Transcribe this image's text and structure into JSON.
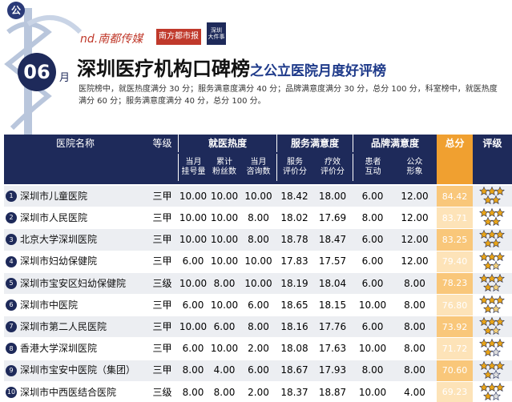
{
  "header": {
    "badge": "公",
    "brand": "nd.南都传媒",
    "paper": "南方都市报",
    "app": "深圳\n大件事",
    "month_number": "06",
    "month_unit": "月",
    "title": "深圳医疗机构口碑榜",
    "subtitle": "之公立医院月度好评榜",
    "description": "医院榜中，就医热度满分 30 分；服务满意度满分 40 分；品牌满意度满分 30 分，总分 100 分，科室榜中，就医热度满分 60 分；服务满意度满分 40 分，总分 100 分。"
  },
  "table": {
    "columns": {
      "name": "医院名称",
      "grade": "等级",
      "groups": [
        {
          "label": "就医热度",
          "subs": [
            "当月\n挂号量",
            "累计\n粉丝数",
            "当月\n咨询数"
          ]
        },
        {
          "label": "服务满意度",
          "subs": [
            "服务\n评价分",
            "疗效\n评价分"
          ]
        },
        {
          "label": "品牌满意度",
          "subs": [
            "患者\n互动",
            "公众\n形象"
          ]
        }
      ],
      "total": "总分",
      "rating": "评级"
    },
    "rows": [
      {
        "rank": "1",
        "name": "深圳市儿童医院",
        "grade": "三甲",
        "cells": [
          "10.00",
          "10.00",
          "10.00",
          "18.42",
          "18.00",
          "6.00",
          "12.00"
        ],
        "total": "84.42",
        "rating": 5
      },
      {
        "rank": "2",
        "name": "深圳市人民医院",
        "grade": "三甲",
        "cells": [
          "10.00",
          "10.00",
          "8.00",
          "18.02",
          "17.69",
          "8.00",
          "12.00"
        ],
        "total": "83.71",
        "rating": 5
      },
      {
        "rank": "3",
        "name": "北京大学深圳医院",
        "grade": "三甲",
        "cells": [
          "10.00",
          "10.00",
          "8.00",
          "18.78",
          "18.47",
          "6.00",
          "12.00"
        ],
        "total": "83.25",
        "rating": 5
      },
      {
        "rank": "4",
        "name": "深圳市妇幼保健院",
        "grade": "三甲",
        "cells": [
          "6.00",
          "10.00",
          "10.00",
          "17.83",
          "17.57",
          "6.00",
          "12.00"
        ],
        "total": "79.40",
        "rating": 4.5
      },
      {
        "rank": "5",
        "name": "深圳市宝安区妇幼保健院",
        "grade": "三级",
        "cells": [
          "10.00",
          "8.00",
          "10.00",
          "18.19",
          "18.04",
          "6.00",
          "8.00"
        ],
        "total": "78.23",
        "rating": 4.5
      },
      {
        "rank": "6",
        "name": "深圳市中医院",
        "grade": "三甲",
        "cells": [
          "6.00",
          "10.00",
          "6.00",
          "18.65",
          "18.15",
          "10.00",
          "8.00"
        ],
        "total": "76.80",
        "rating": 4.5
      },
      {
        "rank": "7",
        "name": "深圳市第二人民医院",
        "grade": "三甲",
        "cells": [
          "10.00",
          "6.00",
          "8.00",
          "18.16",
          "17.76",
          "6.00",
          "8.00"
        ],
        "total": "73.92",
        "rating": 4.5
      },
      {
        "rank": "8",
        "name": "香港大学深圳医院",
        "grade": "三甲",
        "cells": [
          "6.00",
          "10.00",
          "2.00",
          "18.08",
          "17.63",
          "10.00",
          "8.00"
        ],
        "total": "71.72",
        "rating": 4
      },
      {
        "rank": "9",
        "name": "深圳市宝安中医院（集团）",
        "grade": "三甲",
        "cells": [
          "8.00",
          "4.00",
          "6.00",
          "18.67",
          "17.93",
          "8.00",
          "8.00"
        ],
        "total": "70.60",
        "rating": 4
      },
      {
        "rank": "10",
        "name": "深圳市中西医结合医院",
        "grade": "三级",
        "cells": [
          "8.00",
          "8.00",
          "2.00",
          "18.37",
          "18.87",
          "10.00",
          "4.00"
        ],
        "total": "69.23",
        "rating": 4
      }
    ]
  }
}
